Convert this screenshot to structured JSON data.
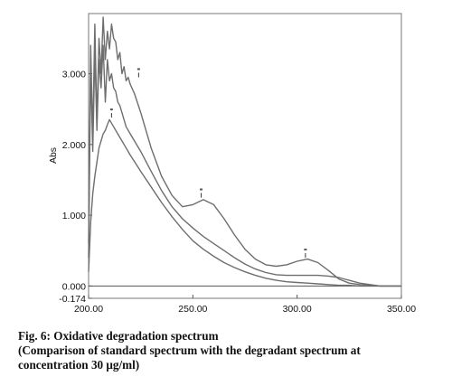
{
  "chart_data": {
    "type": "line",
    "xlabel": "",
    "ylabel": "Abs",
    "xlim": [
      200,
      350
    ],
    "ylim": [
      -0.174,
      3.85
    ],
    "x_ticks": [
      "200.00",
      "250.00",
      "300.00",
      "350.00"
    ],
    "y_ticks": [
      "3.000",
      "2.000",
      "1.000",
      "0.000",
      "-0.174"
    ],
    "x_tick_values": [
      200,
      250,
      300,
      350
    ],
    "y_tick_values": [
      3.0,
      2.0,
      1.0,
      0.0,
      -0.174
    ],
    "grid": false,
    "legend": "none",
    "line_color": "#6e6e6e",
    "series": [
      {
        "x": [
          200,
          201,
          202,
          203,
          204,
          205,
          206,
          207,
          208,
          209,
          210,
          211,
          212,
          213,
          214,
          215,
          216,
          217,
          218,
          219,
          220,
          222,
          225,
          230,
          235,
          240,
          245,
          250,
          255,
          260,
          265,
          270,
          275,
          280,
          285,
          290,
          295,
          300,
          305,
          310,
          315,
          320,
          325,
          330,
          335,
          340,
          345,
          350
        ],
        "values": [
          0.6,
          3.4,
          2.1,
          3.7,
          2.3,
          3.5,
          3.0,
          3.8,
          3.2,
          3.6,
          3.35,
          3.7,
          3.5,
          3.45,
          3.2,
          3.3,
          3.0,
          3.1,
          2.9,
          2.95,
          2.85,
          2.72,
          2.45,
          1.95,
          1.55,
          1.28,
          1.12,
          1.15,
          1.22,
          1.15,
          0.95,
          0.72,
          0.52,
          0.38,
          0.3,
          0.28,
          0.3,
          0.35,
          0.38,
          0.33,
          0.22,
          0.1,
          0.04,
          0.02,
          0.01,
          0.0,
          0.0,
          0.0
        ]
      },
      {
        "x": [
          200,
          201,
          202,
          203,
          204,
          205,
          206,
          207,
          208,
          209,
          210,
          211,
          212,
          213,
          214,
          215,
          216,
          217,
          218,
          219,
          220,
          222,
          225,
          230,
          235,
          240,
          245,
          250,
          255,
          260,
          265,
          270,
          275,
          280,
          285,
          290,
          295,
          300,
          305,
          310,
          315,
          320,
          325,
          330,
          335,
          340,
          345,
          350
        ],
        "values": [
          0.4,
          3.1,
          1.9,
          3.3,
          2.2,
          3.2,
          2.8,
          3.4,
          2.6,
          3.2,
          2.9,
          3.0,
          2.8,
          2.75,
          2.6,
          2.55,
          2.45,
          2.35,
          2.25,
          2.2,
          2.15,
          2.05,
          1.9,
          1.62,
          1.35,
          1.12,
          0.95,
          0.82,
          0.7,
          0.6,
          0.5,
          0.4,
          0.31,
          0.24,
          0.19,
          0.16,
          0.15,
          0.15,
          0.15,
          0.15,
          0.14,
          0.12,
          0.08,
          0.04,
          0.02,
          0.0,
          0.0,
          0.0
        ]
      },
      {
        "x": [
          200,
          201,
          202,
          203,
          204,
          205,
          206,
          207,
          208,
          209,
          210,
          211,
          212,
          213,
          214,
          215,
          216,
          217,
          218,
          219,
          220,
          222,
          225,
          230,
          235,
          240,
          245,
          250,
          255,
          260,
          265,
          270,
          275,
          280,
          285,
          290,
          295,
          300,
          305,
          310,
          315,
          320,
          325,
          330,
          335,
          340,
          345,
          350
        ],
        "values": [
          0.2,
          0.9,
          1.3,
          1.55,
          1.75,
          1.95,
          2.05,
          2.15,
          2.2,
          2.28,
          2.35,
          2.3,
          2.25,
          2.2,
          2.15,
          2.1,
          2.05,
          2.0,
          1.95,
          1.9,
          1.85,
          1.76,
          1.62,
          1.4,
          1.18,
          0.98,
          0.8,
          0.64,
          0.52,
          0.42,
          0.33,
          0.26,
          0.2,
          0.15,
          0.11,
          0.08,
          0.06,
          0.05,
          0.04,
          0.03,
          0.02,
          0.01,
          0.01,
          0.0,
          0.0,
          0.0,
          0.0,
          0.0
        ]
      }
    ],
    "peak_markers": [
      {
        "x": 211,
        "y": 2.38
      },
      {
        "x": 224,
        "y": 2.95
      },
      {
        "x": 254,
        "y": 1.25
      },
      {
        "x": 304,
        "y": 0.4
      }
    ]
  },
  "caption": {
    "line1": "Fig. 6: Oxidative degradation spectrum",
    "line2": "(Comparison of standard spectrum with the degradant spectrum at",
    "line3": "concentration 30 μg/ml)"
  }
}
